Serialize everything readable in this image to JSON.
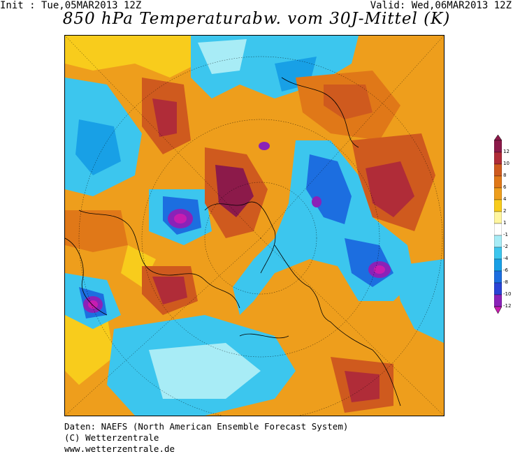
{
  "header": {
    "init": "Init : Tue,05MAR2013 12Z",
    "valid": "Valid: Wed,06MAR2013 12Z",
    "title": "850 hPa Temperaturabw. vom 30J-Mittel (K)"
  },
  "legend": {
    "levels": [
      {
        "label": "12",
        "color": "#8c1a4a"
      },
      {
        "label": "10",
        "color": "#b02c38"
      },
      {
        "label": "8",
        "color": "#cf5a1e"
      },
      {
        "label": "6",
        "color": "#e07818"
      },
      {
        "label": "4",
        "color": "#ee9e1c"
      },
      {
        "label": "2",
        "color": "#f8cc1c"
      },
      {
        "label": "1",
        "color": "#fff6a0"
      },
      {
        "label": "-1",
        "color": "#ffffff"
      },
      {
        "label": "-2",
        "color": "#a8ecf6"
      },
      {
        "label": "-4",
        "color": "#3cc6ee"
      },
      {
        "label": "-6",
        "color": "#18a0e6"
      },
      {
        "label": "-8",
        "color": "#1c6ee0"
      },
      {
        "label": "-10",
        "color": "#2a44d6"
      },
      {
        "label": "-12",
        "color": "#8a22b8"
      }
    ],
    "bottom_color": "#c81cb0"
  },
  "footer": {
    "line1": "Daten: NAEFS (North American Ensemble Forecast System)",
    "line2": "(C) Wetterzentrale",
    "line3": "www.wetterzentrale.de"
  }
}
